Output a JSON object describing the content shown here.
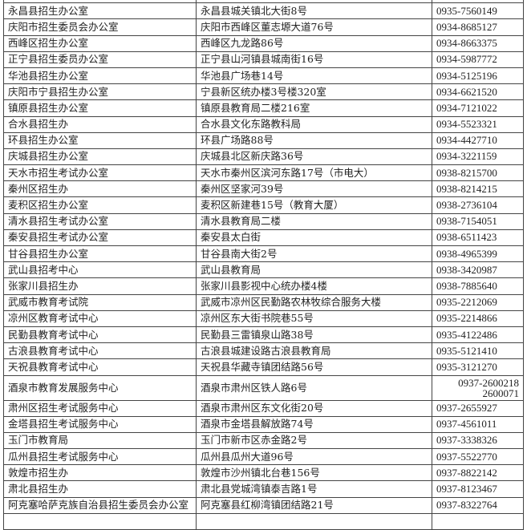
{
  "table": {
    "rows": [
      {
        "office": "",
        "address": "",
        "phone": ""
      },
      {
        "office": "永昌县招生办公室",
        "address": "永昌县城关镇北大街8号",
        "phone": "0935-7560149"
      },
      {
        "office": "庆阳市招生委员会办公室",
        "address": "庆阳市西峰区董志塬大道76号",
        "phone": "0934-8685127"
      },
      {
        "office": "西峰区招生办公室",
        "address": "西峰区九龙路86号",
        "phone": "0934-8663375"
      },
      {
        "office": "正宁县招生委员办公室",
        "address": "正宁县山河镇县城南街16号",
        "phone": "0934-5987772"
      },
      {
        "office": "华池县招生办公室",
        "address": "华池县广场巷14号",
        "phone": "0934-5125196"
      },
      {
        "office": "庆阳市宁县招生办公室",
        "address": "宁县新区统办楼3号楼320室",
        "phone": "0934-6621520"
      },
      {
        "office": "镇原县招生办公室",
        "address": "镇原县教育局二楼216室",
        "phone": "0934-7121022"
      },
      {
        "office": "合水县招生办",
        "address": "合水县文化东路教科局",
        "phone": "0934-5523321"
      },
      {
        "office": "环县招生办公室",
        "address": "环县广场路88号",
        "phone": "0934-4427710"
      },
      {
        "office": "庆城县招生办公室",
        "address": "庆城县北区新庆路36号",
        "phone": "0934-3221159"
      },
      {
        "office": "天水市招生考试办公室",
        "address": "天水市秦州区滨河东路17号（市电大）",
        "phone": "0938-8215700"
      },
      {
        "office": "秦州区招生办",
        "address": "秦州区坚家河39号",
        "phone": "0938-8214215"
      },
      {
        "office": "麦积区招生办公室",
        "address": "麦积区新建巷15号（教育大厦）",
        "phone": "0938-2736104"
      },
      {
        "office": "清水县招生考试办公室",
        "address": "清水县教育局二楼",
        "phone": "0938-7154051"
      },
      {
        "office": "秦安县招生考试办公室",
        "address": "秦安县太白街",
        "phone": "0938-6511423"
      },
      {
        "office": "甘谷县招生办公室",
        "address": "甘谷县南大街2号",
        "phone": "0938-4965399"
      },
      {
        "office": "武山县招考中心",
        "address": "武山县教育局",
        "phone": "0938-3420987"
      },
      {
        "office": "张家川县招生办",
        "address": "张家川县影视中心统办楼4楼",
        "phone": "0938-7885640"
      },
      {
        "office": "武威市教育考试院",
        "address": "武威市凉州区民勤路农林牧综合服务大楼",
        "phone": "0935-2212069"
      },
      {
        "office": "凉州区教育考试中心",
        "address": "凉州区东大街书院巷55号",
        "phone": "0935-2214866"
      },
      {
        "office": "民勤县教育考试中心",
        "address": "民勤县三雷镇泉山路38号",
        "phone": "0935-4122486"
      },
      {
        "office": "古浪县教育考试中心",
        "address": "古浪县城建设路古浪县教育局",
        "phone": "0935-5121410"
      },
      {
        "office": "天祝县教育考试中心",
        "address": "天祝县华藏寺镇团结路56号",
        "phone": "0935-3121270"
      },
      {
        "office": "酒泉市教育发展服务中心",
        "address": "酒泉市肃州区铁人路6号",
        "phone": "0937-2600218",
        "phone2": "2600071"
      },
      {
        "office": "肃州区招生考试服务中心",
        "address": "酒泉市肃州区东文化街20号",
        "phone": "0937-2655927"
      },
      {
        "office": "金塔县招生考试服务中心",
        "address": "酒泉市金塔县解放路74号",
        "phone": "0937-4561011"
      },
      {
        "office": "玉门市教育局",
        "address": "玉门市新市区赤金路2号",
        "phone": "0937-3338326"
      },
      {
        "office": "瓜州县招生考试服务中心",
        "address": "瓜州县瓜州大道96号",
        "phone": "0937-5522770"
      },
      {
        "office": "敦煌市招生办",
        "address": "敦煌市沙州镇北台巷156号",
        "phone": "0937-8822142"
      },
      {
        "office": "肃北县招生办",
        "address": "肃北县党城湾镇泰吉路1号",
        "phone": "0937-8123467"
      },
      {
        "office": "阿克塞哈萨克族自治县招生委员会办公室",
        "address": "阿克塞县红柳湾镇团结路21号",
        "phone": "0937-8322764"
      },
      {
        "office": "",
        "address": "",
        "phone": ""
      }
    ]
  }
}
